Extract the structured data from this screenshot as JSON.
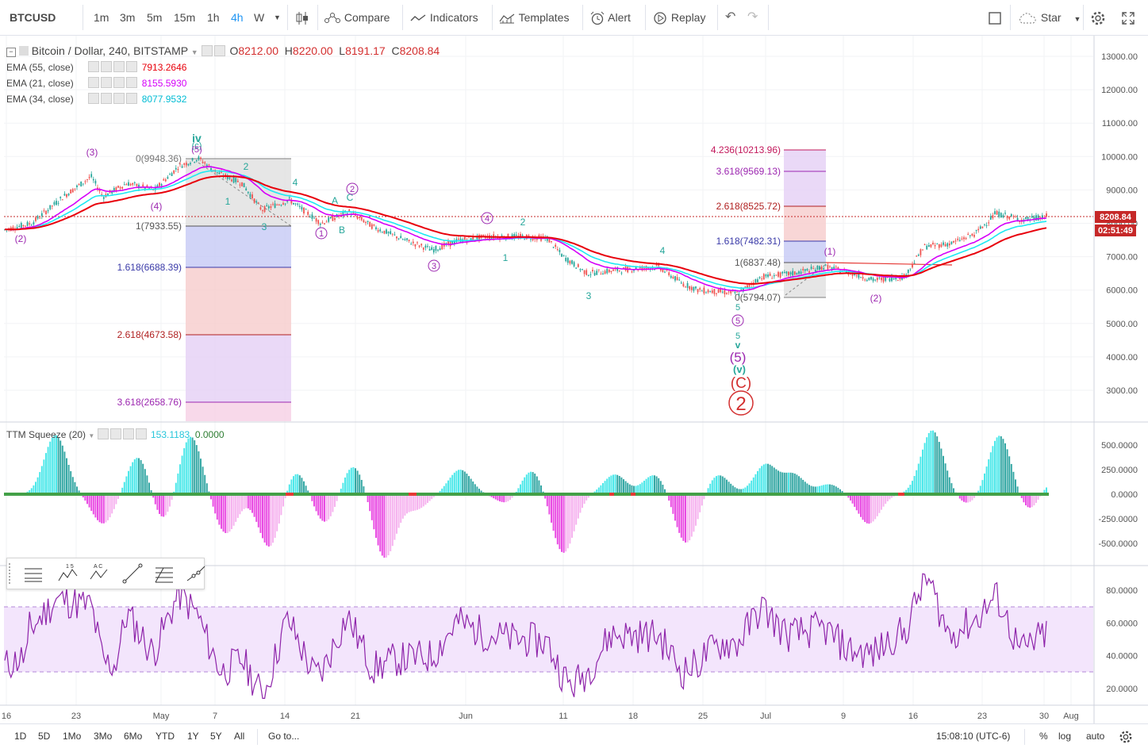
{
  "toolbar": {
    "symbol": "BTCUSD",
    "intervals": [
      "1m",
      "3m",
      "5m",
      "15m",
      "1h",
      "4h",
      "W"
    ],
    "active_interval": "4h",
    "compare": "Compare",
    "indicators": "Indicators",
    "templates": "Templates",
    "alert": "Alert",
    "replay": "Replay",
    "star": "Star"
  },
  "main": {
    "title": "Bitcoin / Dollar, 240, BITSTAMP",
    "ohlc": {
      "o_label": "O",
      "o": "8212.00",
      "h_label": "H",
      "h": "8220.00",
      "l_label": "L",
      "l": "8191.17",
      "c_label": "C",
      "c": "8208.84"
    },
    "emas": [
      {
        "label": "EMA (55, close)",
        "value": "7913.2646",
        "color": "#e8000b"
      },
      {
        "label": "EMA (21, close)",
        "value": "8155.5930",
        "color": "#d500f9"
      },
      {
        "label": "EMA (34, close)",
        "value": "8077.9532",
        "color": "#00d5e8"
      }
    ],
    "price_ticks": [
      "13000.00",
      "12000.00",
      "11000.00",
      "10000.00",
      "9000.00",
      "8000.00",
      "7000.00",
      "6000.00",
      "5000.00",
      "4000.00",
      "3000.00"
    ],
    "last_price": "8208.84",
    "countdown": "02:51:49",
    "fib_left": [
      "0(9948.36)",
      "1(7933.55)",
      "1.618(6688.39)",
      "2.618(4673.58)",
      "3.618(2658.76)"
    ],
    "fib_right": [
      "4.236(10213.96)",
      "3.618(9569.13)",
      "2.618(8525.72)",
      "1.618(7482.31)",
      "1(6837.48)",
      "0(5794.07)"
    ],
    "waves": {
      "iv": "iv",
      "c_small": "(c)",
      "five_p": "(5)",
      "three_p": "(3)",
      "four_p": "(4)",
      "two_p_left": "(2)",
      "w2": "2",
      "w1": "1",
      "w3": "3",
      "w4": "4",
      "a": "A",
      "b": "B",
      "c": "C",
      "circ1": "1",
      "circ2": "2",
      "circ3": "3",
      "circ4": "4",
      "circ5": "5",
      "june1": "1",
      "june2": "2",
      "june3": "3",
      "june4": "4",
      "five_a": "5",
      "five_b": "5",
      "v_small": "v",
      "five_big": "(5)",
      "v_paren": "(v)",
      "c_big": "(C)",
      "two_big": "2",
      "one_p": "(1)",
      "two_p": "(2)"
    }
  },
  "squeeze": {
    "label": "TTM Squeeze (20)",
    "value1": "153.1183",
    "value2": "0.0000",
    "ticks": [
      "500.0000",
      "250.0000",
      "0.0000",
      "-250.0000",
      "-500.0000"
    ]
  },
  "rsi": {
    "ticks": [
      "80.0000",
      "60.0000",
      "40.0000",
      "20.0000"
    ]
  },
  "time_axis": [
    "16",
    "23",
    "May",
    "7",
    "14",
    "21",
    "Jun",
    "11",
    "18",
    "25",
    "Jul",
    "9",
    "16",
    "23",
    "30",
    "Aug"
  ],
  "bottom": {
    "ranges": [
      "1D",
      "5D",
      "1Mo",
      "3Mo",
      "6Mo",
      "YTD",
      "1Y",
      "5Y",
      "All"
    ],
    "goto": "Go to...",
    "time": "15:08:10 (UTC-6)",
    "pct": "%",
    "log": "log",
    "auto": "auto"
  }
}
